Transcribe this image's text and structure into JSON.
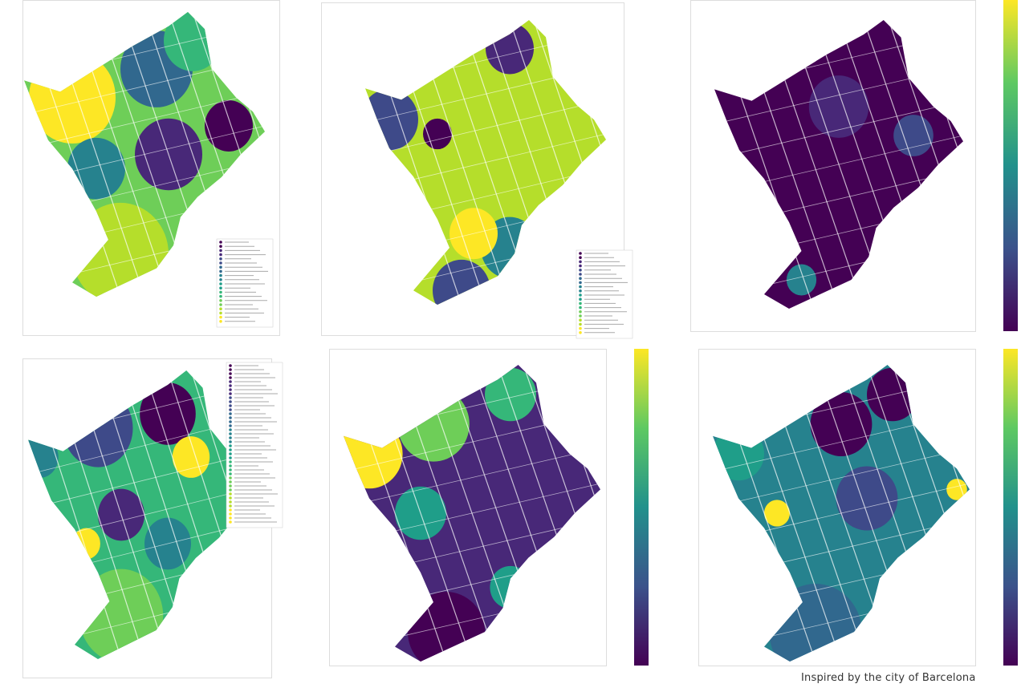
{
  "caption": "Inspired by the city of Barcelona"
}
